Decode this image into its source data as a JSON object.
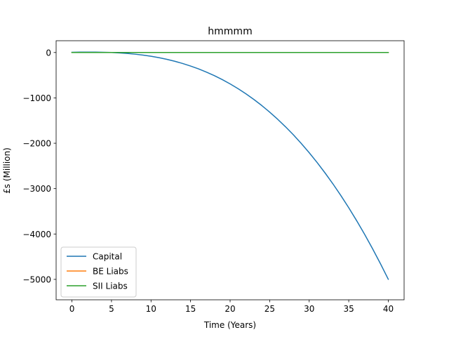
{
  "chart_data": {
    "type": "line",
    "title": "hmmmm",
    "xlabel": "Time (Years)",
    "ylabel": "£s (Million)",
    "xlim": [
      -2,
      42
    ],
    "ylim": [
      -5450,
      260
    ],
    "xticks": [
      0,
      5,
      10,
      15,
      20,
      25,
      30,
      35,
      40
    ],
    "yticks": [
      0,
      -1000,
      -2000,
      -3000,
      -4000,
      -5000
    ],
    "xtick_labels": [
      "0",
      "5",
      "10",
      "15",
      "20",
      "25",
      "30",
      "35",
      "40"
    ],
    "ytick_labels": [
      "0",
      "−1000",
      "−2000",
      "−3000",
      "−4000",
      "−5000"
    ],
    "grid": false,
    "legend_position": "lower-left",
    "x": [
      0,
      1,
      2,
      3,
      4,
      5,
      6,
      7,
      8,
      9,
      10,
      11,
      12,
      13,
      14,
      15,
      16,
      17,
      18,
      19,
      20,
      21,
      22,
      23,
      24,
      25,
      26,
      27,
      28,
      29,
      30,
      31,
      32,
      33,
      34,
      35,
      36,
      37,
      38,
      39,
      40
    ],
    "series": [
      {
        "name": "Capital",
        "color": "#1f77b4",
        "values": [
          5,
          8,
          9,
          8,
          5,
          0,
          -9,
          -21,
          -37,
          -57,
          -83,
          -114,
          -150,
          -193,
          -242,
          -298,
          -360,
          -431,
          -509,
          -596,
          -692,
          -796,
          -910,
          -1034,
          -1168,
          -1313,
          -1469,
          -1636,
          -1814,
          -2005,
          -2208,
          -2424,
          -2653,
          -2895,
          -3151,
          -3421,
          -3706,
          -4006,
          -4321,
          -4651,
          -4998
        ]
      },
      {
        "name": "BE Liabs",
        "color": "#ff7f0e",
        "values": [
          0,
          0,
          0,
          0,
          0,
          0,
          0,
          0,
          0,
          0,
          0,
          0,
          0,
          0,
          0,
          0,
          0,
          0,
          0,
          0,
          0,
          0,
          0,
          0,
          0,
          0,
          0,
          0,
          0,
          0,
          0,
          0,
          0,
          0,
          0,
          0,
          0,
          0,
          0,
          0,
          0
        ]
      },
      {
        "name": "SII Liabs",
        "color": "#2ca02c",
        "values": [
          0,
          0,
          0,
          0,
          0,
          0,
          0,
          0,
          0,
          0,
          0,
          0,
          0,
          0,
          0,
          0,
          0,
          0,
          0,
          0,
          0,
          0,
          0,
          0,
          0,
          0,
          0,
          0,
          0,
          0,
          0,
          0,
          0,
          0,
          0,
          0,
          0,
          0,
          0,
          0,
          0
        ]
      }
    ]
  }
}
